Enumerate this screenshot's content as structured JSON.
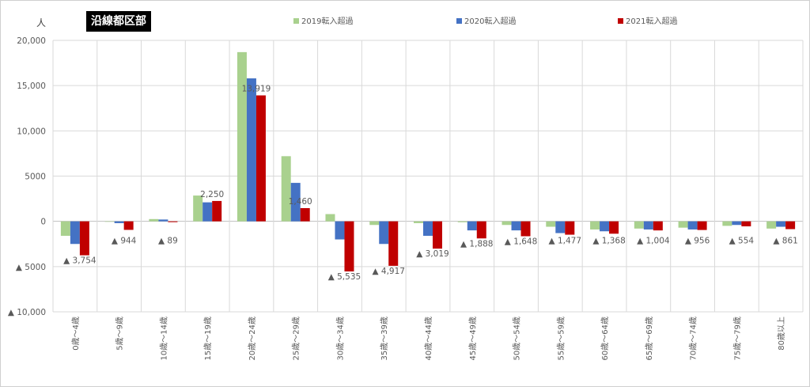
{
  "chart_data": {
    "type": "bar",
    "title": "沿線都区部",
    "y_unit": "人",
    "ylim": [
      -10000,
      20000
    ],
    "yticks": [
      {
        "value": 20000,
        "label": "20,000"
      },
      {
        "value": 15000,
        "label": "15,000"
      },
      {
        "value": 10000,
        "label": "10,000"
      },
      {
        "value": 5000,
        "label": "5000"
      },
      {
        "value": 0,
        "label": "0"
      },
      {
        "value": -5000,
        "label": "▲ 5000"
      },
      {
        "value": -10000,
        "label": "▲ 10,000"
      }
    ],
    "grid": true,
    "legend_position": "top",
    "categories": [
      "0歳～4歳",
      "5歳～9歳",
      "10歳～14歳",
      "15歳～19歳",
      "20歳～24歳",
      "25歳～29歳",
      "30歳～34歳",
      "35歳～39歳",
      "40歳～44歳",
      "45歳～49歳",
      "50歳～54歳",
      "55歳～59歳",
      "60歳～64歳",
      "65歳～69歳",
      "70歳～74歳",
      "75歳～79歳",
      "80歳以上"
    ],
    "series": [
      {
        "name": "2019転入超過",
        "color": "#a9d18e",
        "values": [
          -1600,
          -50,
          250,
          2850,
          18700,
          7200,
          800,
          -400,
          -200,
          -100,
          -400,
          -600,
          -900,
          -800,
          -700,
          -500,
          -800
        ]
      },
      {
        "name": "2020転入超過",
        "color": "#4472c4",
        "values": [
          -2500,
          -200,
          200,
          2100,
          15800,
          4250,
          -2000,
          -2500,
          -1600,
          -1000,
          -1000,
          -1300,
          -1100,
          -900,
          -900,
          -400,
          -600
        ]
      },
      {
        "name": "2021転入超過",
        "color": "#c00000",
        "values": [
          -3754,
          -944,
          -89,
          2250,
          13919,
          1460,
          -5535,
          -4917,
          -3019,
          -1888,
          -1648,
          -1477,
          -1368,
          -1004,
          -956,
          -554,
          -861
        ]
      }
    ],
    "data_labels": [
      "▲ 3,754",
      "▲ 944",
      "▲ 89",
      "2,250",
      "13,919",
      "1,460",
      "▲ 5,535",
      "▲ 4,917",
      "▲ 3,019",
      "▲ 1,888",
      "▲ 1,648",
      "▲ 1,477",
      "▲ 1,368",
      "▲ 1,004",
      "▲ 956",
      "▲ 554",
      "▲ 861"
    ]
  }
}
